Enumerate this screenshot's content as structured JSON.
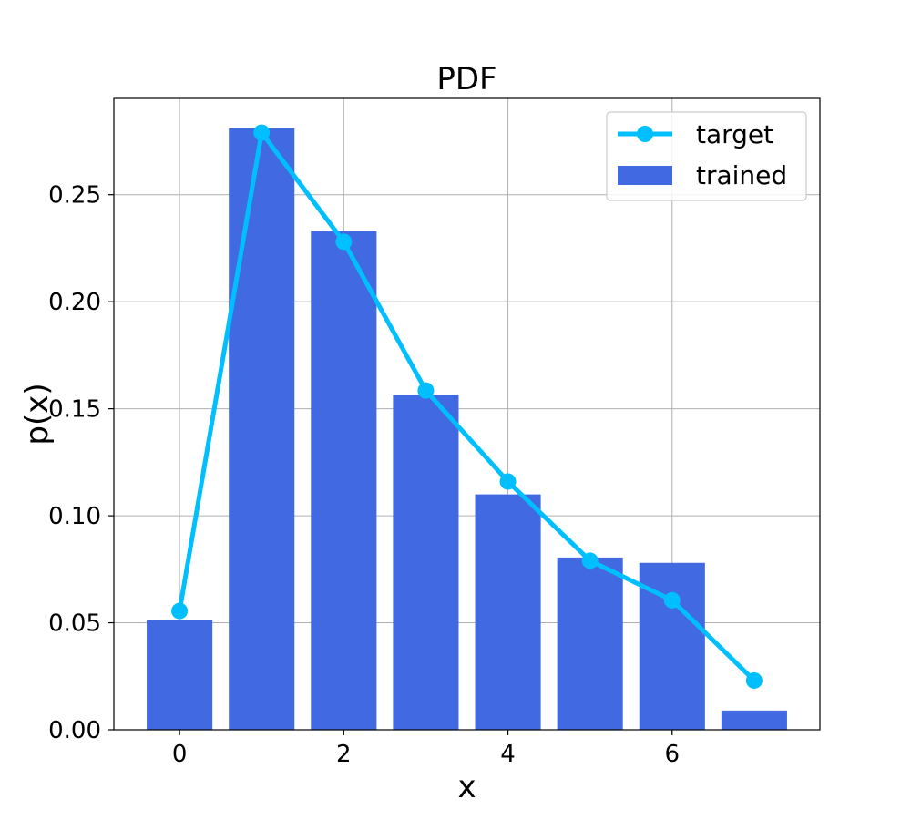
{
  "chart_data": {
    "type": "bar",
    "title": "PDF",
    "xlabel": "x",
    "ylabel": "p(x)",
    "xlim": [
      -0.8,
      7.8
    ],
    "ylim": [
      0,
      0.295
    ],
    "x_ticks": [
      0,
      2,
      4,
      6
    ],
    "x_tick_labels": [
      "0",
      "2",
      "4",
      "6"
    ],
    "y_ticks": [
      0.0,
      0.05,
      0.1,
      0.15,
      0.2,
      0.25
    ],
    "y_tick_labels": [
      "0.00",
      "0.05",
      "0.10",
      "0.15",
      "0.20",
      "0.25"
    ],
    "grid": true,
    "legend_position": "top-right",
    "series": [
      {
        "name": "trained",
        "kind": "bar",
        "color": "#4169e1",
        "x": [
          0,
          1,
          2,
          3,
          4,
          5,
          6,
          7
        ],
        "values": [
          0.0515,
          0.281,
          0.233,
          0.1565,
          0.11,
          0.0805,
          0.078,
          0.009
        ]
      },
      {
        "name": "target",
        "kind": "line",
        "color": "#00bfff",
        "x": [
          0,
          1,
          2,
          3,
          4,
          5,
          6,
          7
        ],
        "values": [
          0.0555,
          0.279,
          0.228,
          0.1585,
          0.116,
          0.079,
          0.0605,
          0.023
        ]
      }
    ]
  }
}
